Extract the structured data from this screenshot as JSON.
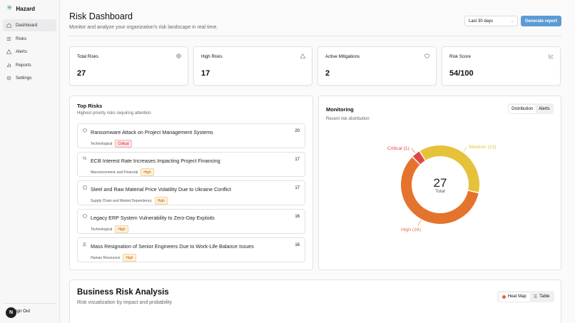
{
  "app": {
    "name": "Hazard"
  },
  "sidebar": {
    "items": [
      {
        "label": "Dashboard",
        "icon": "home-icon",
        "active": true
      },
      {
        "label": "Risks",
        "icon": "list-icon"
      },
      {
        "label": "Alerts",
        "icon": "alert-triangle-icon"
      },
      {
        "label": "Reports",
        "icon": "bar-chart-icon"
      },
      {
        "label": "Settings",
        "icon": "gear-icon"
      }
    ],
    "sign_out": "Sign Out",
    "avatar": "N"
  },
  "header": {
    "title": "Risk Dashboard",
    "subtitle": "Monitor and analyze your organization's risk landscape in real time.",
    "period": "Last 30 days",
    "generate_label": "Generate report"
  },
  "stats": [
    {
      "label": "Total Risks",
      "value": "27",
      "icon": "globe-icon"
    },
    {
      "label": "High Risks",
      "value": "17",
      "icon": "alert-triangle-icon"
    },
    {
      "label": "Active Mitigations",
      "value": "2",
      "icon": "shield-icon"
    },
    {
      "label": "Risk Score",
      "value": "54/100",
      "icon": "chart-icon"
    }
  ],
  "top_risks": {
    "title": "Top Risks",
    "subtitle": "Highest priority risks requiring attention",
    "items": [
      {
        "title": "Ransomware Attack on Project Management Systems",
        "category": "Technological",
        "severity": "Critical",
        "score": "20",
        "icon": "shield-icon"
      },
      {
        "title": "ECB Interest Rate Increases Impacting Project Financing",
        "category": "Macroeconomic and Financial",
        "severity": "High",
        "score": "17",
        "icon": "percent-icon"
      },
      {
        "title": "Steel and Raw Material Price Volatility Due to Ukraine Conflict",
        "category": "Supply Chain and Market Dependency",
        "severity": "High",
        "score": "17",
        "icon": "box-icon"
      },
      {
        "title": "Legacy ERP System Vulnerability to Zero-Day Exploits",
        "category": "Technological",
        "severity": "High",
        "score": "16",
        "icon": "shield-icon"
      },
      {
        "title": "Mass Resignation of Senior Engineers Due to Work-Life Balance Issues",
        "category": "Human Resources",
        "severity": "High",
        "score": "16",
        "icon": "users-icon"
      }
    ]
  },
  "monitoring": {
    "title": "Monitoring",
    "subtitle": "Recent risk distribution",
    "tabs": [
      "Distribution",
      "Alerts"
    ],
    "total_value": "27",
    "total_label": "Total"
  },
  "chart_data": {
    "type": "pie",
    "categories": [
      "Critical",
      "Medium",
      "High"
    ],
    "values": [
      1,
      10,
      16
    ],
    "labels": [
      "Critical (1)",
      "Medium (10)",
      "High (16)"
    ],
    "colors": [
      "#e04848",
      "#e6c13a",
      "#e4742d"
    ],
    "center_value": "27",
    "center_label": "Total"
  },
  "business": {
    "title": "Business Risk Analysis",
    "subtitle": "Risk visualization by impact and probability",
    "tabs": [
      "Heat Map",
      "Table"
    ]
  }
}
